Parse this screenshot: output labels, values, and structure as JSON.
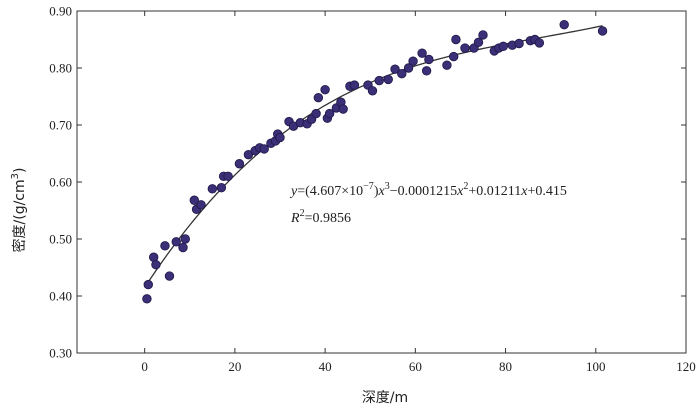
{
  "chart_data": {
    "type": "scatter",
    "xlabel": "深度/m",
    "ylabel_parts": {
      "main": "密度/(g/cm",
      "sup": "3",
      "tail": ")"
    },
    "xlim": [
      -15,
      120
    ],
    "ylim": [
      0.3,
      0.9
    ],
    "xticks": [
      "0",
      "20",
      "40",
      "60",
      "80",
      "100",
      "120"
    ],
    "yticks": [
      "0.30",
      "0.40",
      "0.50",
      "0.60",
      "0.70",
      "0.80",
      "0.90"
    ],
    "grid": false,
    "point_color": "#3b2f78",
    "fit_color": "#333333",
    "equation": {
      "y": "y",
      "eq_open": "=(4.607×10",
      "exp1": "−7",
      "c1": ")",
      "x1": "x",
      "p1": "3",
      "c2": "−0.0001215",
      "x2": "x",
      "p2": "2",
      "c3": "+0.01211",
      "x3": "x",
      "c4": "+0.415"
    },
    "r2": {
      "r": "R",
      "p": "2",
      "value": "=0.9856"
    },
    "fit": {
      "a": 4.607e-07,
      "b": -0.0001215,
      "c": 0.01211,
      "d": 0.415,
      "xrange": [
        0,
        101.5
      ]
    },
    "points": [
      [
        0.5,
        0.395
      ],
      [
        0.8,
        0.42
      ],
      [
        2,
        0.468
      ],
      [
        2.5,
        0.455
      ],
      [
        4.5,
        0.488
      ],
      [
        5.5,
        0.435
      ],
      [
        7,
        0.495
      ],
      [
        8.5,
        0.485
      ],
      [
        9,
        0.5
      ],
      [
        11,
        0.568
      ],
      [
        11.5,
        0.552
      ],
      [
        12.5,
        0.56
      ],
      [
        15,
        0.588
      ],
      [
        17,
        0.59
      ],
      [
        17.5,
        0.61
      ],
      [
        18.5,
        0.61
      ],
      [
        21,
        0.632
      ],
      [
        23,
        0.648
      ],
      [
        24.5,
        0.655
      ],
      [
        25.5,
        0.66
      ],
      [
        26.5,
        0.658
      ],
      [
        28,
        0.668
      ],
      [
        29,
        0.672
      ],
      [
        29.5,
        0.684
      ],
      [
        30,
        0.678
      ],
      [
        32,
        0.706
      ],
      [
        33,
        0.698
      ],
      [
        34.5,
        0.704
      ],
      [
        36,
        0.702
      ],
      [
        37,
        0.71
      ],
      [
        38,
        0.72
      ],
      [
        38.5,
        0.748
      ],
      [
        40,
        0.762
      ],
      [
        40.5,
        0.712
      ],
      [
        41,
        0.72
      ],
      [
        42.5,
        0.73
      ],
      [
        43.5,
        0.74
      ],
      [
        44,
        0.728
      ],
      [
        45.5,
        0.768
      ],
      [
        46.5,
        0.77
      ],
      [
        49.5,
        0.77
      ],
      [
        50.5,
        0.76
      ],
      [
        52,
        0.778
      ],
      [
        54,
        0.78
      ],
      [
        55.5,
        0.798
      ],
      [
        57,
        0.79
      ],
      [
        58.5,
        0.8
      ],
      [
        59.5,
        0.812
      ],
      [
        61.5,
        0.826
      ],
      [
        62.5,
        0.795
      ],
      [
        63,
        0.815
      ],
      [
        67,
        0.805
      ],
      [
        68.5,
        0.82
      ],
      [
        69,
        0.85
      ],
      [
        71,
        0.835
      ],
      [
        73,
        0.835
      ],
      [
        74,
        0.845
      ],
      [
        75,
        0.858
      ],
      [
        77.5,
        0.83
      ],
      [
        78.5,
        0.835
      ],
      [
        79.5,
        0.838
      ],
      [
        81.5,
        0.84
      ],
      [
        83,
        0.843
      ],
      [
        85.5,
        0.848
      ],
      [
        86.5,
        0.85
      ],
      [
        87.5,
        0.844
      ],
      [
        93,
        0.876
      ],
      [
        101.5,
        0.865
      ]
    ]
  }
}
